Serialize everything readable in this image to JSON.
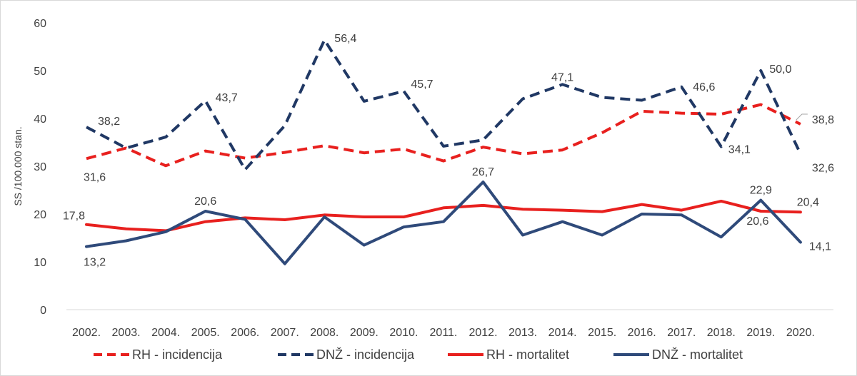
{
  "chart_data": {
    "type": "line",
    "ylabel": "SS /100.000 stan.",
    "ylim": [
      0,
      60
    ],
    "yticks": [
      "0",
      "10",
      "20",
      "30",
      "40",
      "50",
      "60"
    ],
    "categories": [
      "2002.",
      "2003.",
      "2004.",
      "2005.",
      "2006.",
      "2007.",
      "2008.",
      "2009.",
      "2010.",
      "2011.",
      "2012.",
      "2013.",
      "2014.",
      "2015.",
      "2016.",
      "2017.",
      "2018.",
      "2019.",
      "2020."
    ],
    "legend_position": "bottom",
    "grid": false,
    "series": [
      {
        "name": "RH - incidencija",
        "color": "#e8201e",
        "style": "dashed",
        "values": [
          31.6,
          33.8,
          30.1,
          33.2,
          31.7,
          32.9,
          34.3,
          32.8,
          33.6,
          31.1,
          34.0,
          32.6,
          33.4,
          37.0,
          41.5,
          41.1,
          40.9,
          42.9,
          38.8
        ],
        "labels": [
          {
            "index": 0,
            "text": "31,6"
          },
          {
            "index": 18,
            "text": "38,8"
          }
        ]
      },
      {
        "name": "DNŽ - incidencija",
        "color": "#203864",
        "style": "dashed",
        "values": [
          38.2,
          33.8,
          36.1,
          43.7,
          29.3,
          38.5,
          56.4,
          43.6,
          45.7,
          34.2,
          35.5,
          44.1,
          47.1,
          44.4,
          43.8,
          46.6,
          34.1,
          50.0,
          32.6
        ],
        "labels": [
          {
            "index": 0,
            "text": "38,2"
          },
          {
            "index": 3,
            "text": "43,7"
          },
          {
            "index": 6,
            "text": "56,4"
          },
          {
            "index": 8,
            "text": "45,7"
          },
          {
            "index": 12,
            "text": "47,1"
          },
          {
            "index": 15,
            "text": "46,6"
          },
          {
            "index": 16,
            "text": "34,1"
          },
          {
            "index": 17,
            "text": "50,0"
          },
          {
            "index": 18,
            "text": "32,6"
          }
        ]
      },
      {
        "name": "RH - mortalitet",
        "color": "#e8201e",
        "style": "solid",
        "values": [
          17.8,
          16.9,
          16.5,
          18.4,
          19.2,
          18.8,
          19.8,
          19.4,
          19.4,
          21.3,
          21.8,
          21.0,
          20.8,
          20.5,
          22.0,
          20.8,
          22.7,
          20.6,
          20.4
        ],
        "labels": [
          {
            "index": 0,
            "text": "17,8"
          },
          {
            "index": 17,
            "text": "20,6"
          },
          {
            "index": 18,
            "text": "20,4"
          }
        ]
      },
      {
        "name": "DNŽ - mortalitet",
        "color": "#2f4a7a",
        "style": "solid",
        "values": [
          13.2,
          14.4,
          16.3,
          20.6,
          18.9,
          9.6,
          19.4,
          13.5,
          17.3,
          18.4,
          26.7,
          15.6,
          18.4,
          15.6,
          20.0,
          19.8,
          15.2,
          22.9,
          14.1
        ],
        "labels": [
          {
            "index": 0,
            "text": "13,2"
          },
          {
            "index": 3,
            "text": "20,6"
          },
          {
            "index": 12,
            "text": ""
          },
          {
            "index": 10,
            "text": "26,7"
          },
          {
            "index": 17,
            "text": "22,9"
          },
          {
            "index": 18,
            "text": "14,1"
          }
        ]
      }
    ]
  }
}
